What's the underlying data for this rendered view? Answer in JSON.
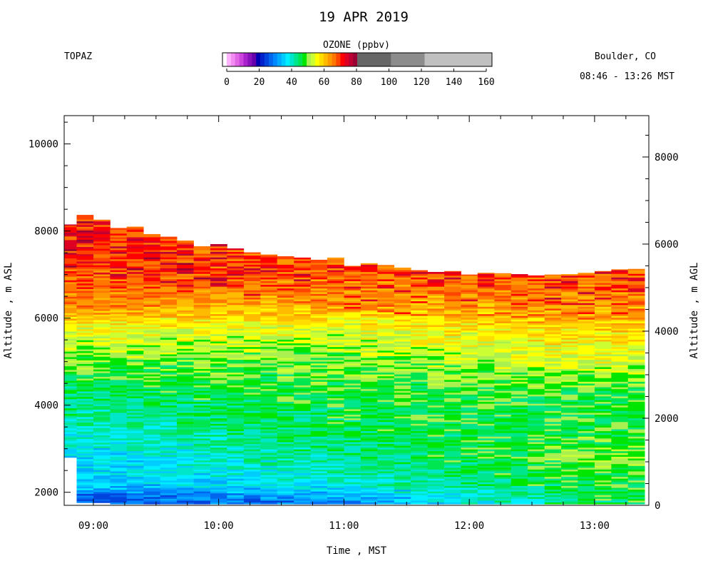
{
  "chart_data": {
    "type": "heatmap",
    "title": "19 APR 2019",
    "instrument": "TOPAZ",
    "location": "Boulder, CO",
    "time_range": "08:46 - 13:26 MST",
    "colorbar": {
      "label": "OZONE (ppbv)",
      "tick_labels": [
        "0",
        "20",
        "40",
        "60",
        "80",
        "100",
        "120",
        "140",
        "160"
      ],
      "range": [
        0,
        160
      ],
      "bins": [
        {
          "lo": 0,
          "hi": 2.5,
          "color": "#ffffff"
        },
        {
          "lo": 2.5,
          "hi": 5,
          "color": "#ffb3ff"
        },
        {
          "lo": 5,
          "hi": 7.5,
          "color": "#f28cf2"
        },
        {
          "lo": 7.5,
          "hi": 10,
          "color": "#e066e6"
        },
        {
          "lo": 10,
          "hi": 12.5,
          "color": "#cc44dd"
        },
        {
          "lo": 12.5,
          "hi": 15,
          "color": "#aa22cc"
        },
        {
          "lo": 15,
          "hi": 17.5,
          "color": "#8811bb"
        },
        {
          "lo": 17.5,
          "hi": 20,
          "color": "#6600aa"
        },
        {
          "lo": 20,
          "hi": 22.5,
          "color": "#0000b3"
        },
        {
          "lo": 22.5,
          "hi": 25,
          "color": "#0022cc"
        },
        {
          "lo": 25,
          "hi": 27.5,
          "color": "#0044dd"
        },
        {
          "lo": 27.5,
          "hi": 30,
          "color": "#0066ee"
        },
        {
          "lo": 30,
          "hi": 32.5,
          "color": "#0088ff"
        },
        {
          "lo": 32.5,
          "hi": 35,
          "color": "#00aaff"
        },
        {
          "lo": 35,
          "hi": 37.5,
          "color": "#00ccff"
        },
        {
          "lo": 37.5,
          "hi": 40,
          "color": "#00eeff"
        },
        {
          "lo": 40,
          "hi": 42.5,
          "color": "#00e6c8"
        },
        {
          "lo": 42.5,
          "hi": 45,
          "color": "#00e68c"
        },
        {
          "lo": 45,
          "hi": 47.5,
          "color": "#00e650"
        },
        {
          "lo": 47.5,
          "hi": 50,
          "color": "#00e600"
        },
        {
          "lo": 50,
          "hi": 52.5,
          "color": "#aaf050"
        },
        {
          "lo": 52.5,
          "hi": 55,
          "color": "#ccff33"
        },
        {
          "lo": 55,
          "hi": 57.5,
          "color": "#ffff00"
        },
        {
          "lo": 57.5,
          "hi": 60,
          "color": "#ffdd00"
        },
        {
          "lo": 60,
          "hi": 62.5,
          "color": "#ffbb00"
        },
        {
          "lo": 62.5,
          "hi": 65,
          "color": "#ff9900"
        },
        {
          "lo": 65,
          "hi": 67.5,
          "color": "#ff7700"
        },
        {
          "lo": 67.5,
          "hi": 70,
          "color": "#ff4400"
        },
        {
          "lo": 70,
          "hi": 72.5,
          "color": "#ff0000"
        },
        {
          "lo": 72.5,
          "hi": 75,
          "color": "#dd0022"
        },
        {
          "lo": 75,
          "hi": 77.5,
          "color": "#bb0033"
        },
        {
          "lo": 77.5,
          "hi": 80,
          "color": "#990033"
        },
        {
          "lo": 80,
          "hi": 100,
          "color": "#666666"
        },
        {
          "lo": 100,
          "hi": 120,
          "color": "#8c8c8c"
        },
        {
          "lo": 120,
          "hi": 160,
          "color": "#c0c0c0"
        }
      ]
    },
    "x_axis": {
      "label": "Time , MST",
      "tick_labels": [
        "09:00",
        "10:00",
        "11:00",
        "12:00",
        "13:00"
      ],
      "tick_values": [
        9.0,
        10.0,
        11.0,
        12.0,
        13.0
      ],
      "range": [
        8.767,
        13.433
      ]
    },
    "y_axis_left": {
      "label": "Altitude , m ASL",
      "tick_labels": [
        "2000",
        "4000",
        "6000",
        "8000",
        "10000"
      ],
      "tick_values": [
        2000,
        4000,
        6000,
        8000,
        10000
      ],
      "range": [
        1700,
        10650
      ]
    },
    "y_axis_right": {
      "label": "Altitude , m AGL",
      "tick_labels": [
        "0",
        "2000",
        "4000",
        "6000",
        "8000"
      ],
      "tick_values": [
        0,
        2000,
        4000,
        6000,
        8000
      ],
      "surface_altitude_m_asl": 1700
    },
    "profile_times": [
      8.8,
      8.933,
      9.067,
      9.2,
      9.333,
      9.467,
      9.6,
      9.733,
      9.867,
      10.0,
      10.133,
      10.267,
      10.4,
      10.533,
      10.667,
      10.8,
      10.933,
      11.067,
      11.2,
      11.333,
      11.467,
      11.6,
      11.733,
      11.867,
      12.0,
      12.133,
      12.267,
      12.4,
      12.533,
      12.667,
      12.8,
      12.933,
      13.067,
      13.2,
      13.333
    ],
    "profile_top_m_asl": [
      8150,
      8370,
      8260,
      8070,
      8100,
      7930,
      7870,
      7780,
      7650,
      7700,
      7600,
      7510,
      7460,
      7420,
      7390,
      7340,
      7390,
      7200,
      7260,
      7220,
      7160,
      7100,
      7060,
      7080,
      7000,
      7040,
      7030,
      7010,
      6980,
      7000,
      7010,
      7040,
      7080,
      7120,
      7130
    ],
    "profile_bottom_m_asl": [
      2800,
      1760,
      1760,
      1730,
      1730,
      1730,
      1730,
      1730,
      1730,
      1730,
      1730,
      1730,
      1730,
      1730,
      1730,
      1730,
      1730,
      1730,
      1730,
      1730,
      1730,
      1730,
      1730,
      1730,
      1730,
      1730,
      1730,
      1730,
      1730,
      1730,
      1730,
      1730,
      1730,
      1730,
      1730
    ],
    "ozone_layers_ppbv": {
      "altitude_m_asl": [
        1800,
        2200,
        2800,
        3500,
        4300,
        5000,
        5800,
        6300,
        6800,
        7300,
        8000
      ],
      "early_profiles_0900": [
        27,
        36,
        38,
        42,
        45,
        50,
        56,
        64,
        68,
        70,
        70
      ],
      "midday_profiles_1100": [
        32,
        40,
        44,
        46,
        48,
        50,
        55,
        62,
        66,
        67,
        67
      ],
      "late_profiles_1300": [
        46,
        48,
        50,
        48,
        48,
        54,
        60,
        64,
        67,
        68,
        68
      ]
    }
  }
}
